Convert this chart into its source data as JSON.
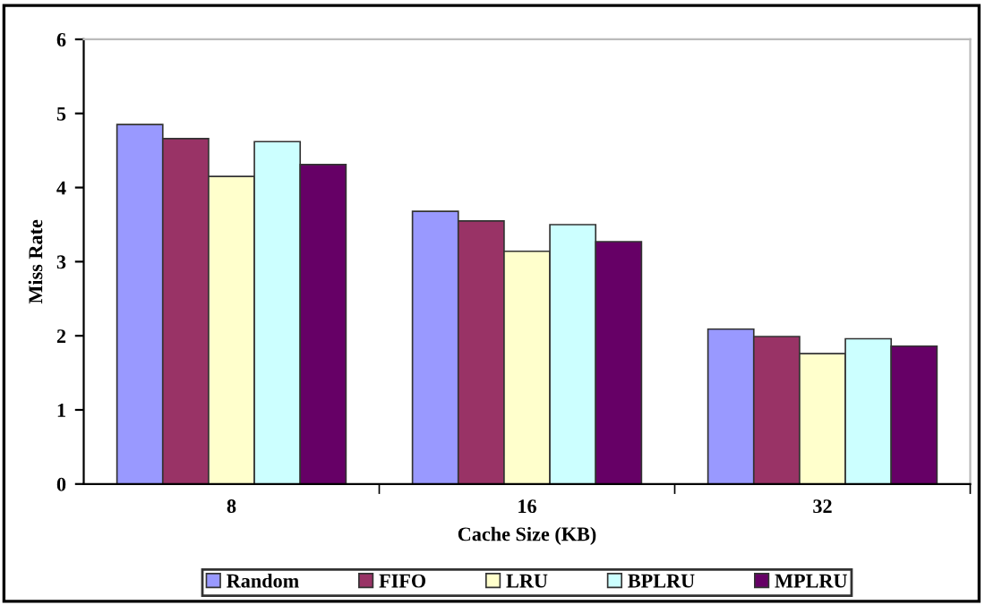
{
  "chart_data": {
    "type": "bar",
    "xlabel": "Cache Size (KB)",
    "ylabel": "Miss Rate",
    "categories": [
      "8",
      "16",
      "32"
    ],
    "series": [
      {
        "name": "Random",
        "color": "#9999ff",
        "values": [
          4.85,
          3.68,
          2.09
        ]
      },
      {
        "name": "FIFO",
        "color": "#993366",
        "values": [
          4.66,
          3.55,
          1.99
        ]
      },
      {
        "name": "LRU",
        "color": "#ffffcc",
        "values": [
          4.15,
          3.14,
          1.76
        ]
      },
      {
        "name": "BPLRU",
        "color": "#ccffff",
        "values": [
          4.62,
          3.5,
          1.96
        ]
      },
      {
        "name": "MPLRU",
        "color": "#660066",
        "values": [
          4.31,
          3.27,
          1.86
        ]
      }
    ],
    "ylim": [
      0,
      6
    ],
    "yticks": [
      0,
      1,
      2,
      3,
      4,
      5,
      6
    ],
    "grid": false,
    "legend": "bottom"
  }
}
